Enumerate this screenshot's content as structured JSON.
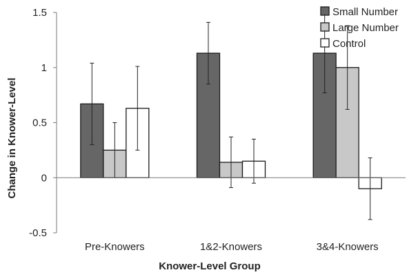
{
  "chart_data": {
    "type": "bar",
    "title": "",
    "xlabel": "Knower-Level Group",
    "ylabel": "Change in Knower-Level",
    "categories": [
      "Pre-Knowers",
      "1&2-Knowers",
      "3&4-Knowers"
    ],
    "ylim": [
      -0.5,
      1.5
    ],
    "yticks": [
      -0.5,
      0,
      0.5,
      1,
      1.5
    ],
    "ytick_labels": [
      "-0.5",
      "0",
      "0.5",
      "1",
      "1.5"
    ],
    "grid": false,
    "legend_position": "top-right",
    "error_bars": true,
    "series": [
      {
        "name": "Small Number",
        "color": "#666666",
        "values": [
          0.67,
          1.13,
          1.13
        ],
        "error": [
          0.37,
          0.28,
          0.36
        ]
      },
      {
        "name": "Large Number",
        "color": "#c8c8c8",
        "values": [
          0.25,
          0.14,
          1.0
        ],
        "error": [
          0.25,
          0.23,
          0.38
        ]
      },
      {
        "name": "Control",
        "color": "#ffffff",
        "values": [
          0.63,
          0.15,
          -0.1
        ],
        "error": [
          0.38,
          0.2,
          0.28
        ]
      }
    ]
  }
}
